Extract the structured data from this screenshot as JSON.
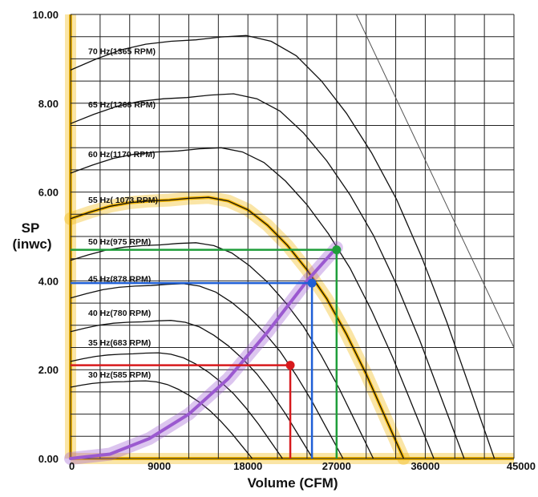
{
  "chart_data": {
    "type": "line",
    "xlabel": "Volume (CFM)",
    "ylabel_lines": [
      "SP",
      "(inwc)"
    ],
    "xlim": [
      0,
      45000
    ],
    "ylim": [
      0,
      10
    ],
    "x_ticks": [
      0,
      9000,
      18000,
      27000,
      36000,
      45000
    ],
    "x_tick_labels": [
      "0",
      "9000",
      "18000",
      "27000",
      "36000",
      "45000"
    ],
    "y_ticks": [
      0,
      2,
      4,
      6,
      8,
      10
    ],
    "y_tick_labels": [
      "0.00",
      "2.00",
      "4.00",
      "6.00",
      "8.00",
      "10.00"
    ],
    "grid": true,
    "series": [
      {
        "name": "30 Hz(585 RPM)",
        "hz": 30,
        "label": "30 Hz(585 RPM)"
      },
      {
        "name": "35 Hz(683 RPM)",
        "hz": 35,
        "label": "35 Hz(683 RPM)"
      },
      {
        "name": "40 Hz(780 RPM)",
        "hz": 40,
        "label": "40 Hz(780 RPM)"
      },
      {
        "name": "45 Hz(878 RPM)",
        "hz": 45,
        "label": "45 Hz(878 RPM)"
      },
      {
        "name": "50 Hz(975 RPM)",
        "hz": 50,
        "label": "50 Hz(975 RPM)"
      },
      {
        "name": "55 Hz( 1073 RPM)",
        "hz": 55,
        "label": "55 Hz( 1073 RPM)",
        "highlight": true
      },
      {
        "name": "60 Hz(1170 RPM)",
        "hz": 60,
        "label": "60 Hz(1170 RPM)"
      },
      {
        "name": "65 Hz(1268 RPM)",
        "hz": 65,
        "label": "65 Hz(1268 RPM)"
      },
      {
        "name": "70 Hz(1365 RPM)",
        "hz": 70,
        "label": "70 Hz(1365 RPM)"
      }
    ],
    "base_curve_55hz": {
      "x": [
        0,
        2000,
        4000,
        6000,
        8000,
        10000,
        12000,
        14000,
        16000,
        18000,
        20000,
        22000,
        24000,
        26000,
        28000,
        30000,
        32000,
        33800
      ],
      "y": [
        5.4,
        5.55,
        5.68,
        5.76,
        5.8,
        5.82,
        5.86,
        5.88,
        5.8,
        5.6,
        5.25,
        4.8,
        4.25,
        3.6,
        2.8,
        1.9,
        0.9,
        0.0
      ]
    },
    "system_curve": {
      "x": [
        0,
        4000,
        8000,
        12000,
        16000,
        20000,
        24000,
        27000
      ],
      "y": [
        0.0,
        0.1,
        0.45,
        1.0,
        1.8,
        2.85,
        4.0,
        4.75
      ]
    },
    "operating_points": [
      {
        "x": 22300,
        "y": 2.1,
        "color": "#d7191c"
      },
      {
        "x": 24500,
        "y": 3.95,
        "color": "#1f5fd6"
      },
      {
        "x": 27000,
        "y": 4.7,
        "color": "#1e9e3a"
      }
    ],
    "diagonal_line": {
      "x": [
        29000,
        45000
      ],
      "y": [
        10.0,
        2.5
      ]
    },
    "colors": {
      "highlight": "#f2b400",
      "system": "#9b59d0",
      "grid": "#222222",
      "curve": "#111111"
    }
  }
}
